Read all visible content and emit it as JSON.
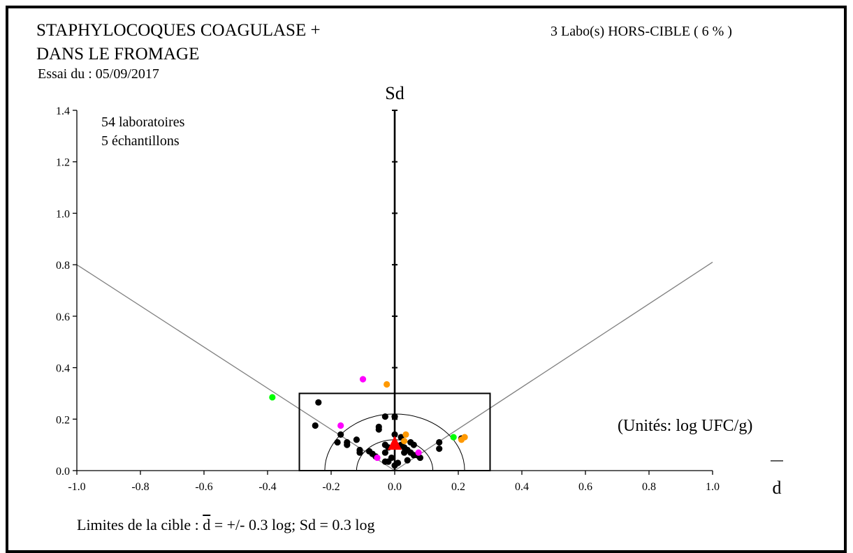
{
  "chart_data": {
    "type": "scatter",
    "title_lines": [
      "STAPHYLOCOQUES  COAGULASE +",
      "DANS LE FROMAGE"
    ],
    "test_date": "Essai du : 05/09/2017",
    "out_of_target": "3 Labo(s) HORS-CIBLE ( 6 % )",
    "annotations": [
      "54 laboratoires",
      "5 échantillons"
    ],
    "units": "(Unités:  log UFC/g)",
    "xlabel": "d",
    "ylabel": "Sd",
    "xlim": [
      -1.0,
      1.0
    ],
    "ylim": [
      0.0,
      1.4
    ],
    "x_ticks": [
      "-1.0",
      "-0.8",
      "-0.6",
      "-0.4",
      "-0.2",
      "0.0",
      "0.2",
      "0.4",
      "0.6",
      "0.8",
      "1.0"
    ],
    "y_ticks": [
      "0.0",
      "0.2",
      "0.4",
      "0.6",
      "0.8",
      "1.0",
      "1.2",
      "1.4"
    ],
    "target_box": {
      "d_limit": 0.3,
      "sd_limit": 0.3
    },
    "target_limits": {
      "prefix": "Limites de la cible : ",
      "d_symbol": "d",
      "suffix": " = +/-  0.3 log; Sd = 0.3 log"
    },
    "reference_lines": [
      {
        "from": [
          0.0,
          0.0
        ],
        "to": [
          -1.0,
          0.8
        ]
      },
      {
        "from": [
          0.0,
          0.0
        ],
        "to": [
          1.0,
          0.81
        ]
      }
    ],
    "reference_circles": [
      0.12,
      0.22
    ],
    "mean_marker": {
      "x": 0.0,
      "y": 0.1,
      "color": "#ff0000"
    },
    "series": [
      {
        "color": "#000000",
        "points": [
          [
            -0.24,
            0.265
          ],
          [
            -0.25,
            0.175
          ],
          [
            -0.03,
            0.21
          ],
          [
            0.0,
            0.21
          ],
          [
            -0.05,
            0.17
          ],
          [
            -0.05,
            0.16
          ],
          [
            -0.17,
            0.14
          ],
          [
            -0.18,
            0.11
          ],
          [
            -0.15,
            0.11
          ],
          [
            -0.15,
            0.1
          ],
          [
            -0.12,
            0.12
          ],
          [
            -0.11,
            0.08
          ],
          [
            -0.11,
            0.07
          ],
          [
            -0.08,
            0.075
          ],
          [
            -0.07,
            0.065
          ],
          [
            -0.03,
            0.1
          ],
          [
            -0.02,
            0.09
          ],
          [
            -0.03,
            0.07
          ],
          [
            -0.03,
            0.035
          ],
          [
            -0.02,
            0.035
          ],
          [
            -0.01,
            0.05
          ],
          [
            0.0,
            0.02
          ],
          [
            0.01,
            0.03
          ],
          [
            0.02,
            0.1
          ],
          [
            0.03,
            0.09
          ],
          [
            0.04,
            0.08
          ],
          [
            0.05,
            0.07
          ],
          [
            0.06,
            0.06
          ],
          [
            0.07,
            0.06
          ],
          [
            0.08,
            0.05
          ],
          [
            0.04,
            0.04
          ],
          [
            0.03,
            0.07
          ],
          [
            0.05,
            0.11
          ],
          [
            0.06,
            0.1
          ],
          [
            0.02,
            0.13
          ],
          [
            0.14,
            0.11
          ],
          [
            0.14,
            0.085
          ],
          [
            0.21,
            0.125
          ],
          [
            0.0,
            0.14
          ],
          [
            -0.06,
            0.055
          ]
        ]
      },
      {
        "color": "#ff00ff",
        "points": [
          [
            -0.1,
            0.355
          ],
          [
            -0.17,
            0.175
          ],
          [
            -0.055,
            0.05
          ],
          [
            0.075,
            0.07
          ]
        ]
      },
      {
        "color": "#ff9900",
        "points": [
          [
            -0.025,
            0.335
          ],
          [
            0.035,
            0.14
          ],
          [
            0.03,
            0.115
          ],
          [
            0.21,
            0.12
          ],
          [
            0.22,
            0.13
          ]
        ]
      },
      {
        "color": "#00ff00",
        "points": [
          [
            -0.385,
            0.285
          ],
          [
            0.185,
            0.13
          ]
        ]
      }
    ]
  }
}
